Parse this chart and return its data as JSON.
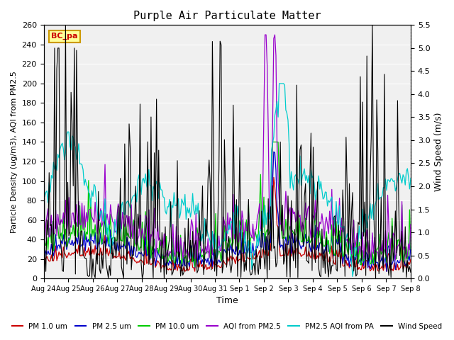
{
  "title": "Purple Air Particulate Matter",
  "xlabel": "Time",
  "ylabel_left": "Particle Density (ug/m3), AQI from PM2.5",
  "ylabel_right": "Wind Speed (m/s)",
  "ylim_left": [
    0,
    260
  ],
  "ylim_right": [
    0.0,
    5.5
  ],
  "yticks_left": [
    0,
    20,
    40,
    60,
    80,
    100,
    120,
    140,
    160,
    180,
    200,
    220,
    240,
    260
  ],
  "yticks_right": [
    0.0,
    0.5,
    1.0,
    1.5,
    2.0,
    2.5,
    3.0,
    3.5,
    4.0,
    4.5,
    5.0,
    5.5
  ],
  "xtick_labels": [
    "Aug 24",
    "Aug 25",
    "Aug 26",
    "Aug 27",
    "Aug 28",
    "Aug 29",
    "Aug 30",
    "Aug 31",
    "Sep 1",
    "Sep 2",
    "Sep 3",
    "Sep 4",
    "Sep 5",
    "Sep 6",
    "Sep 7",
    "Sep 8"
  ],
  "station_label": "BC_pa",
  "station_box_facecolor": "#FFFF99",
  "station_box_edgecolor": "#CC9900",
  "legend_entries": [
    {
      "label": "PM 1.0 um",
      "color": "#CC0000"
    },
    {
      "label": "PM 2.5 um",
      "color": "#0000CC"
    },
    {
      "label": "PM 10.0 um",
      "color": "#00CC00"
    },
    {
      "label": "AQI from PM2.5",
      "color": "#9900CC"
    },
    {
      "label": "PM2.5 AQI from PA",
      "color": "#00CCCC"
    },
    {
      "label": "Wind Speed",
      "color": "#000000"
    }
  ],
  "background_color": "#FFFFFF",
  "plot_bg_color": "#F0F0F0",
  "grid_color": "#FFFFFF",
  "n_points": 336
}
